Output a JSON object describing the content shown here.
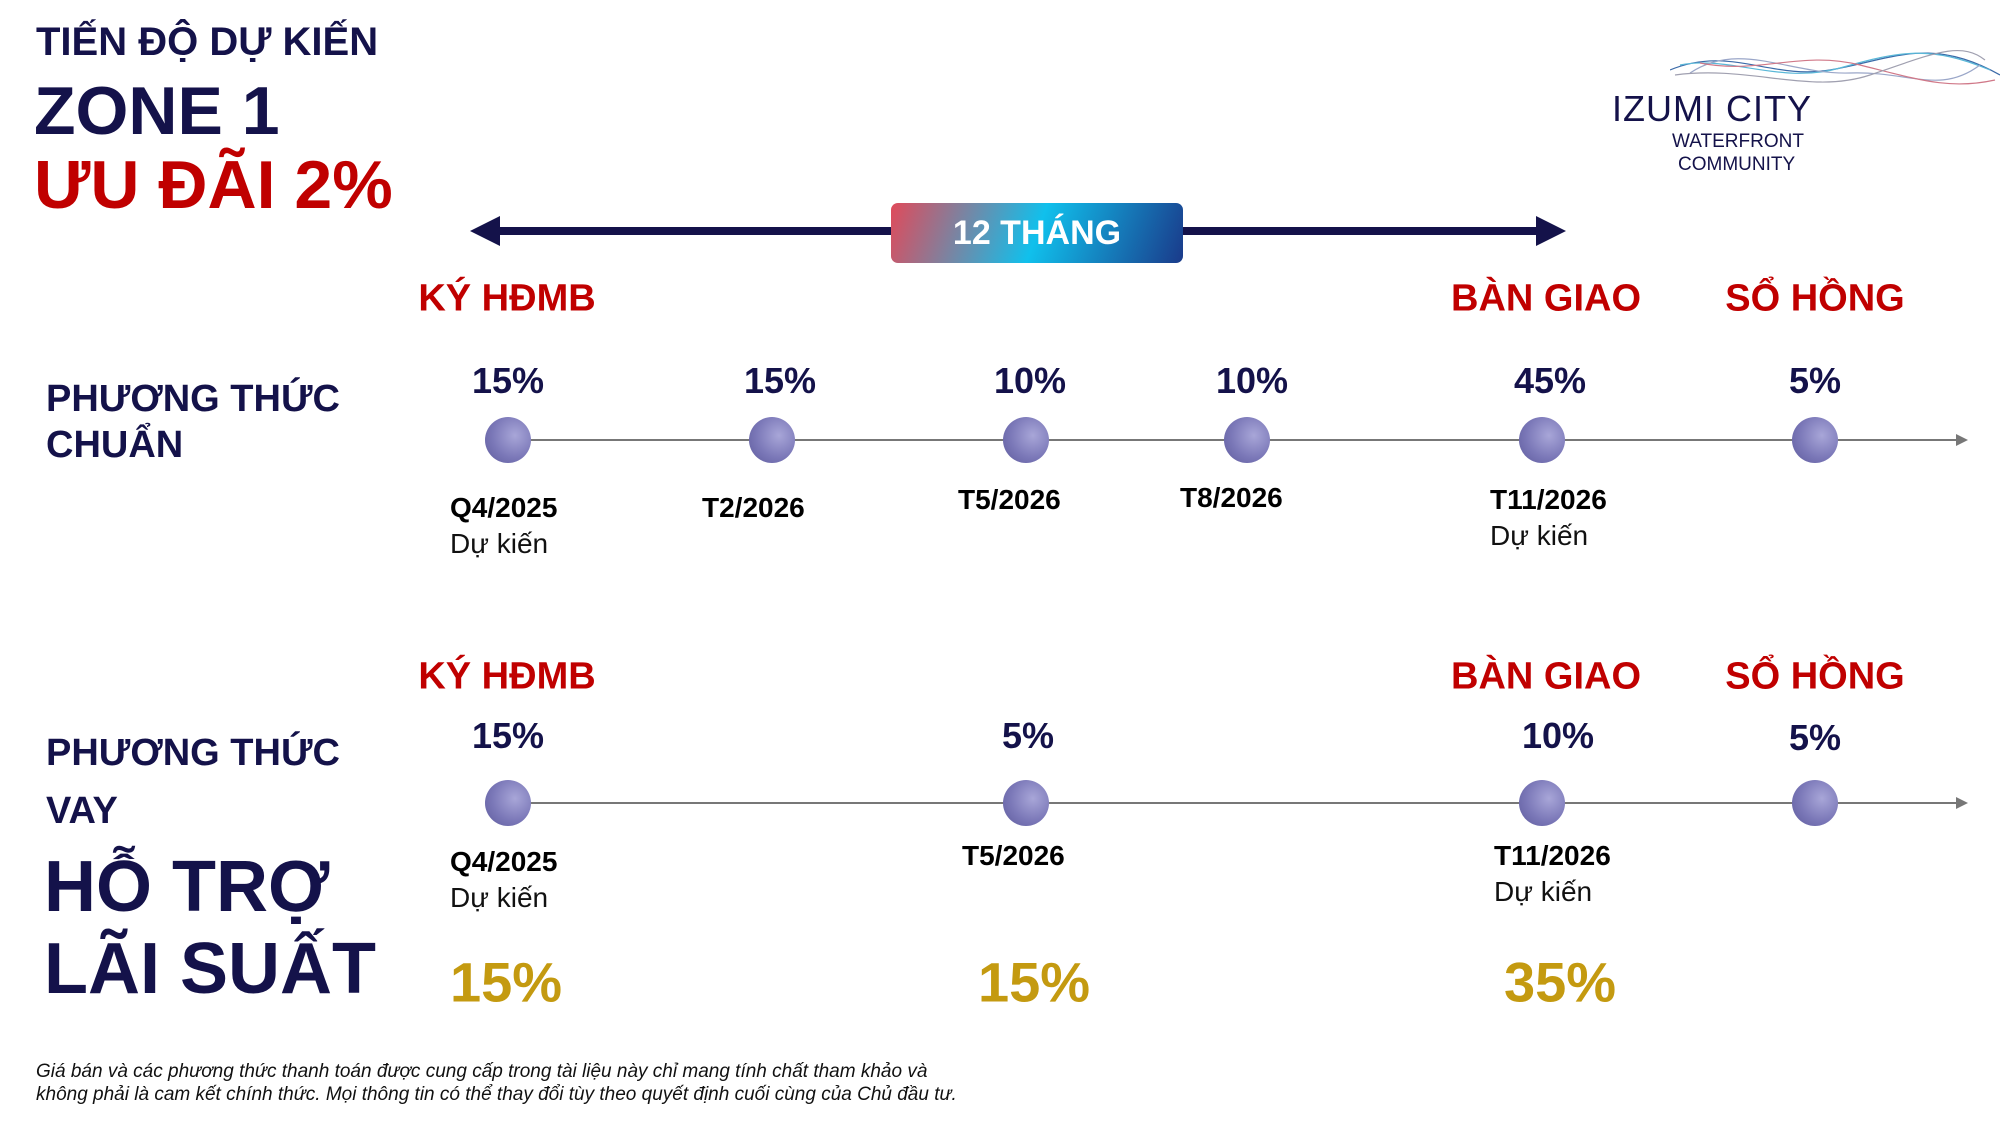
{
  "header": {
    "line1": "TIẾN ĐỘ DỰ KIẾN",
    "line2": "ZONE 1",
    "line3": "ƯU ĐÃI 2%"
  },
  "logo": {
    "name": "IZUMI CITY",
    "line2": "WATERFRONT",
    "line3": "COMMUNITY"
  },
  "duration": {
    "label": "12 THÁNG"
  },
  "milestones": {
    "sign": "KÝ HĐMB",
    "handover": "BÀN GIAO",
    "pink_book": "SỔ HỒNG"
  },
  "standard": {
    "label1": "PHƯƠNG THỨC",
    "label2": "CHUẨN",
    "steps": [
      {
        "pct": "15%",
        "date": "Q4/2025",
        "note": "Dự kiến"
      },
      {
        "pct": "15%",
        "date": "T2/2026"
      },
      {
        "pct": "10%",
        "date": "T5/2026"
      },
      {
        "pct": "10%",
        "date": "T8/2026"
      },
      {
        "pct": "45%",
        "date": "T11/2026",
        "note": "Dự kiến"
      },
      {
        "pct": "5%"
      }
    ]
  },
  "loan": {
    "label1": "PHƯƠNG THỨC",
    "label2": "VAY",
    "support1": "HỖ TRỢ",
    "support2": "LÃI SUẤT",
    "steps": [
      {
        "pct": "15%",
        "date": "Q4/2025",
        "note": "Dự kiến",
        "loan_pct": "15%"
      },
      {
        "pct": "5%",
        "date": "T5/2026",
        "loan_pct": "15%"
      },
      {
        "pct": "10%",
        "date": "T11/2026",
        "note": "Dự kiến",
        "loan_pct": "35%"
      },
      {
        "pct": "5%"
      }
    ]
  },
  "footer": {
    "line1": "Giá bán và các phương thức thanh toán được cung cấp trong tài liệu này chỉ mang tính chất tham khảo và",
    "line2": "không phải là cam kết chính thức. Mọi thông tin có thể thay đổi tùy theo quyết định cuối cùng của Chủ đầu tư."
  }
}
